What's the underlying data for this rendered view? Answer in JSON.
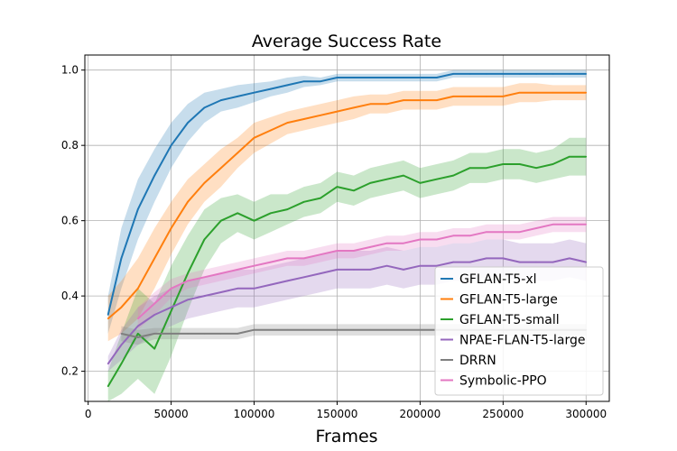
{
  "chart_data": {
    "type": "line",
    "title": "Average Success Rate",
    "xlabel": "Frames",
    "ylabel": "",
    "xlim": [
      -2000,
      314000
    ],
    "ylim": [
      0.12,
      1.04
    ],
    "x_ticks": [
      0,
      50000,
      100000,
      150000,
      200000,
      250000,
      300000
    ],
    "x_tick_labels": [
      "0",
      "50000",
      "100000",
      "150000",
      "200000",
      "250000",
      "300000"
    ],
    "y_ticks": [
      0.2,
      0.4,
      0.6,
      0.8,
      1.0
    ],
    "y_tick_labels": [
      "0.2",
      "0.4",
      "0.6",
      "0.8",
      "1.0"
    ],
    "grid": true,
    "legend_position": "bottom-right",
    "x": [
      12000,
      20000,
      30000,
      40000,
      50000,
      60000,
      70000,
      80000,
      90000,
      100000,
      110000,
      120000,
      130000,
      140000,
      150000,
      160000,
      170000,
      180000,
      190000,
      200000,
      210000,
      220000,
      230000,
      240000,
      250000,
      260000,
      270000,
      280000,
      290000,
      300000
    ],
    "series": [
      {
        "name": "GFLAN-T5-xl",
        "color": "#1f77b4",
        "values": [
          0.35,
          0.5,
          0.63,
          0.72,
          0.8,
          0.86,
          0.9,
          0.92,
          0.93,
          0.94,
          0.95,
          0.96,
          0.97,
          0.97,
          0.98,
          0.98,
          0.98,
          0.98,
          0.98,
          0.98,
          0.98,
          0.99,
          0.99,
          0.99,
          0.99,
          0.99,
          0.99,
          0.99,
          0.99,
          0.99
        ],
        "band": [
          0.05,
          0.08,
          0.08,
          0.07,
          0.06,
          0.05,
          0.04,
          0.03,
          0.03,
          0.025,
          0.02,
          0.02,
          0.015,
          0.01,
          0.01,
          0.01,
          0.01,
          0.01,
          0.01,
          0.01,
          0.01,
          0.01,
          0.01,
          0.01,
          0.01,
          0.01,
          0.01,
          0.01,
          0.01,
          0.01
        ]
      },
      {
        "name": "GFLAN-T5-large",
        "color": "#ff7f0e",
        "values": [
          0.34,
          0.37,
          0.42,
          0.5,
          0.58,
          0.65,
          0.7,
          0.74,
          0.78,
          0.82,
          0.84,
          0.86,
          0.87,
          0.88,
          0.89,
          0.9,
          0.91,
          0.91,
          0.92,
          0.92,
          0.92,
          0.93,
          0.93,
          0.93,
          0.93,
          0.94,
          0.94,
          0.94,
          0.94,
          0.94
        ],
        "band": [
          0.06,
          0.07,
          0.08,
          0.08,
          0.07,
          0.06,
          0.05,
          0.05,
          0.04,
          0.04,
          0.035,
          0.03,
          0.03,
          0.03,
          0.03,
          0.03,
          0.025,
          0.025,
          0.025,
          0.025,
          0.025,
          0.025,
          0.025,
          0.025,
          0.025,
          0.025,
          0.025,
          0.02,
          0.02,
          0.02
        ]
      },
      {
        "name": "GFLAN-T5-small",
        "color": "#2ca02c",
        "values": [
          0.16,
          0.22,
          0.3,
          0.26,
          0.36,
          0.46,
          0.55,
          0.6,
          0.62,
          0.6,
          0.62,
          0.63,
          0.65,
          0.66,
          0.69,
          0.68,
          0.7,
          0.71,
          0.72,
          0.7,
          0.71,
          0.72,
          0.74,
          0.74,
          0.75,
          0.75,
          0.74,
          0.75,
          0.77,
          0.77
        ],
        "band": [
          0.04,
          0.08,
          0.12,
          0.12,
          0.12,
          0.1,
          0.08,
          0.06,
          0.05,
          0.05,
          0.05,
          0.04,
          0.04,
          0.04,
          0.04,
          0.04,
          0.04,
          0.04,
          0.04,
          0.04,
          0.04,
          0.04,
          0.04,
          0.04,
          0.04,
          0.04,
          0.04,
          0.04,
          0.05,
          0.05
        ]
      },
      {
        "name": "NPAE-FLAN-T5-large",
        "color": "#9467bd",
        "values": [
          0.22,
          0.27,
          0.32,
          0.35,
          0.37,
          0.39,
          0.4,
          0.41,
          0.42,
          0.42,
          0.43,
          0.44,
          0.45,
          0.46,
          0.47,
          0.47,
          0.47,
          0.48,
          0.47,
          0.48,
          0.48,
          0.49,
          0.49,
          0.5,
          0.5,
          0.49,
          0.49,
          0.49,
          0.5,
          0.49
        ],
        "band": [
          0.02,
          0.04,
          0.05,
          0.05,
          0.05,
          0.05,
          0.05,
          0.05,
          0.05,
          0.05,
          0.05,
          0.05,
          0.05,
          0.05,
          0.05,
          0.05,
          0.05,
          0.05,
          0.05,
          0.05,
          0.05,
          0.05,
          0.05,
          0.05,
          0.05,
          0.05,
          0.05,
          0.05,
          0.05,
          0.05
        ]
      },
      {
        "name": "DRRN",
        "color": "#7f7f7f",
        "values": [
          null,
          0.3,
          0.29,
          0.3,
          0.3,
          0.3,
          0.3,
          0.3,
          0.3,
          0.31,
          0.31,
          0.31,
          0.31,
          0.31,
          0.31,
          0.31,
          0.31,
          0.31,
          0.31,
          0.31,
          0.31,
          0.31,
          0.31,
          0.31,
          0.31,
          0.31,
          0.31,
          0.31,
          0.31,
          0.31
        ],
        "band": [
          0,
          0.02,
          0.02,
          0.015,
          0.015,
          0.015,
          0.015,
          0.015,
          0.015,
          0.015,
          0.015,
          0.015,
          0.015,
          0.015,
          0.015,
          0.015,
          0.015,
          0.015,
          0.015,
          0.015,
          0.015,
          0.015,
          0.015,
          0.015,
          0.015,
          0.015,
          0.015,
          0.015,
          0.015,
          0.015
        ]
      },
      {
        "name": "Symbolic-PPO",
        "color": "#e377c2",
        "values": [
          null,
          null,
          0.34,
          0.38,
          0.42,
          0.44,
          0.45,
          0.46,
          0.47,
          0.48,
          0.49,
          0.5,
          0.5,
          0.51,
          0.52,
          0.52,
          0.53,
          0.54,
          0.54,
          0.55,
          0.55,
          0.56,
          0.56,
          0.57,
          0.57,
          0.57,
          0.58,
          0.59,
          0.59,
          0.59
        ],
        "band": [
          0,
          0,
          0.03,
          0.03,
          0.025,
          0.02,
          0.02,
          0.02,
          0.02,
          0.02,
          0.02,
          0.02,
          0.02,
          0.02,
          0.02,
          0.02,
          0.02,
          0.02,
          0.02,
          0.02,
          0.02,
          0.02,
          0.02,
          0.02,
          0.02,
          0.02,
          0.02,
          0.02,
          0.02,
          0.02
        ]
      }
    ]
  }
}
